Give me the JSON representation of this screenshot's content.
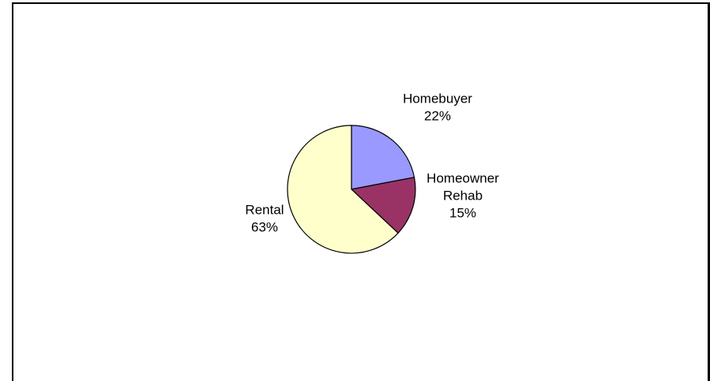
{
  "chart_data": {
    "type": "pie",
    "title": "",
    "slices": [
      {
        "label_lines": [
          "Homebuyer"
        ],
        "percent_label": "22%",
        "value": 22,
        "color": "#9999ff"
      },
      {
        "label_lines": [
          "Homeowner",
          "Rehab"
        ],
        "percent_label": "15%",
        "value": 15,
        "color": "#993366"
      },
      {
        "label_lines": [
          "Rental"
        ],
        "percent_label": "63%",
        "value": 63,
        "color": "#ffffcc"
      }
    ],
    "start_angle_deg": 0,
    "direction": "clockwise",
    "legend": "none",
    "stroke_color": "#000000"
  }
}
